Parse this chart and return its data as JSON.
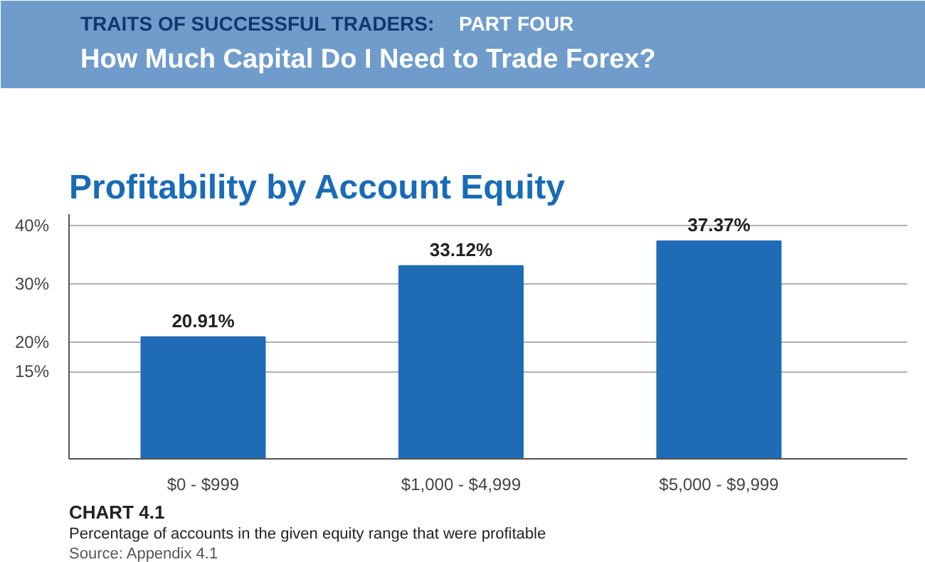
{
  "chart_data": {
    "type": "bar",
    "title": "Profitability by Account Equity",
    "annotations": [
      "TRAITS OF SUCCESSFUL TRADERS:",
      "PART FOUR",
      "How Much Capital Do I Need to Trade Forex?",
      "CHART 4.1",
      "Percentage of accounts in the given equity range that were profitable",
      "Source: Appendix 4.1"
    ],
    "categories": [
      "$0 - $999",
      "$1,000 - $4,999",
      "$5,000 - $9,999"
    ],
    "values": [
      20.91,
      33.12,
      37.37
    ],
    "color": "#1f6bb5",
    "value_labels": [
      "20.91%",
      "33.12%",
      "37.37%"
    ],
    "ylim": [
      0,
      42
    ],
    "yticks": [
      {
        "value": 15,
        "label": "15%"
      },
      {
        "value": 20,
        "label": "20%"
      },
      {
        "value": 30,
        "label": "30%"
      },
      {
        "value": 40,
        "label": "40%"
      }
    ],
    "grid": "y"
  }
}
